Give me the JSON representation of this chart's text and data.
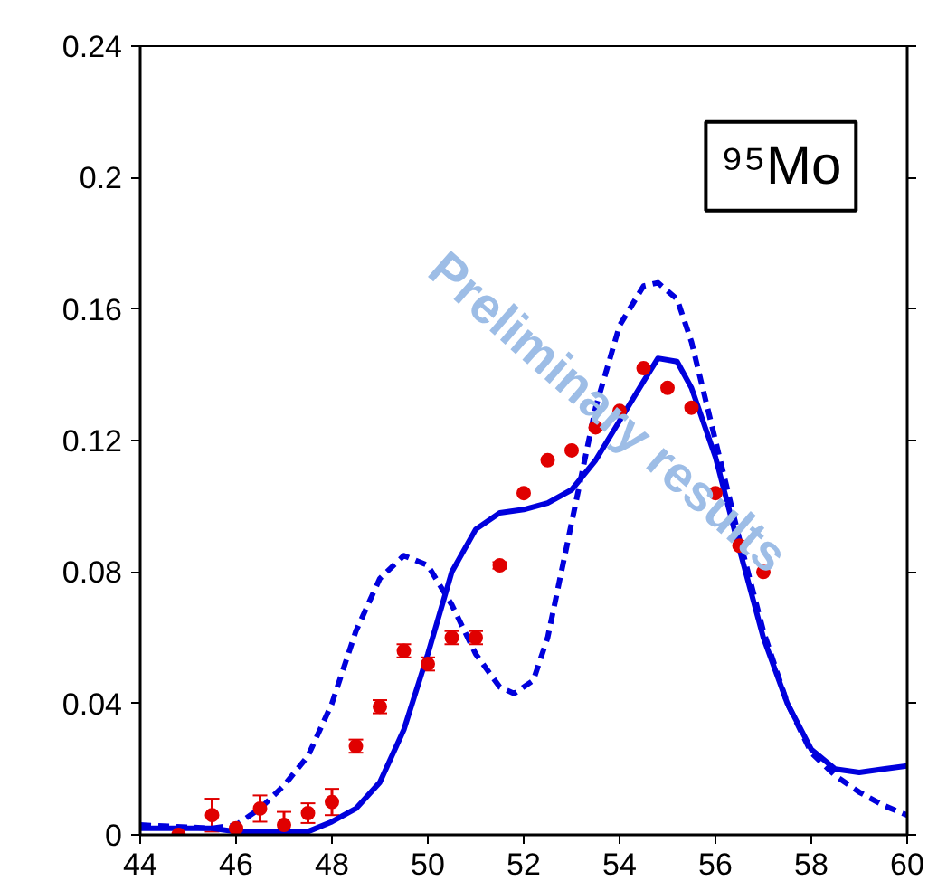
{
  "chart_data": {
    "type": "line",
    "xlim": [
      44,
      60
    ],
    "ylim": [
      0,
      0.24
    ],
    "xticks": [
      44,
      46,
      48,
      50,
      52,
      54,
      56,
      58,
      60
    ],
    "yticks": [
      0,
      0.04,
      0.08,
      0.12,
      {
        "value": 0.16,
        "label": "0.16"
      },
      {
        "value": 0.2,
        "label": "0.2"
      },
      0.24
    ],
    "grid": false,
    "annotations": [
      "⁹⁵Mo",
      "Preliminary results"
    ],
    "series": [
      {
        "type": "scatter",
        "color": "#e00000",
        "marker": "circle",
        "x": [
          44.8,
          45.5,
          46,
          46.5,
          47,
          47.5,
          48,
          48.5,
          49,
          49.5,
          50,
          50.5,
          51,
          51.5,
          52,
          52.5,
          53,
          53.5,
          54,
          54.5,
          55,
          55.5,
          56,
          56.5,
          57
        ],
        "values": [
          0,
          0.006,
          0.002,
          0.008,
          0.003,
          0.0066,
          0.01,
          0.027,
          0.039,
          0.056,
          0.052,
          0.06,
          0.06,
          0.082,
          0.104,
          0.114,
          0.117,
          0.124,
          0.129,
          0.142,
          0.136,
          0.13,
          0.104,
          0.088,
          0.08
        ],
        "errors": [
          null,
          0.005,
          null,
          0.004,
          0.004,
          0.003,
          0.004,
          0.002,
          0.002,
          0.002,
          0.002,
          0.002,
          0.002,
          0.001,
          null,
          null,
          null,
          null,
          null,
          null,
          null,
          null,
          null,
          null,
          null
        ]
      },
      {
        "color": "#0000dd",
        "line_style": "solid",
        "x": [
          44,
          45.5,
          46,
          47.5,
          48,
          48.5,
          49,
          49.5,
          50,
          50.5,
          51,
          51.5,
          52,
          52.5,
          53,
          53.5,
          54,
          54.5,
          54.8,
          55.2,
          55.5,
          56,
          56.5,
          57,
          57.5,
          58,
          58.5,
          59,
          59.5,
          60
        ],
        "values": [
          0.002,
          0.002,
          0.001,
          0.001,
          0.004,
          0.008,
          0.016,
          0.032,
          0.055,
          0.08,
          0.093,
          0.098,
          0.099,
          0.101,
          0.105,
          0.114,
          0.126,
          0.138,
          0.145,
          0.144,
          0.136,
          0.115,
          0.087,
          0.06,
          0.04,
          0.026,
          0.02,
          0.019,
          0.02,
          0.021
        ]
      },
      {
        "color": "#0000dd",
        "line_style": "dashed",
        "x": [
          44,
          45.5,
          46,
          46.5,
          47,
          47.5,
          48,
          48.5,
          49,
          49.5,
          50,
          50.5,
          51,
          51.5,
          51.8,
          52.2,
          52.5,
          53,
          53.5,
          54,
          54.5,
          54.8,
          55.2,
          55.5,
          56,
          56.5,
          57,
          57.5,
          58,
          58.5,
          59,
          59.5,
          60
        ],
        "values": [
          0.003,
          0.002,
          0.003,
          0.008,
          0.015,
          0.024,
          0.04,
          0.062,
          0.078,
          0.085,
          0.082,
          0.07,
          0.055,
          0.045,
          0.043,
          0.047,
          0.06,
          0.095,
          0.13,
          0.155,
          0.167,
          0.168,
          0.163,
          0.15,
          0.12,
          0.09,
          0.062,
          0.04,
          0.025,
          0.018,
          0.013,
          0.009,
          0.006
        ]
      }
    ]
  }
}
